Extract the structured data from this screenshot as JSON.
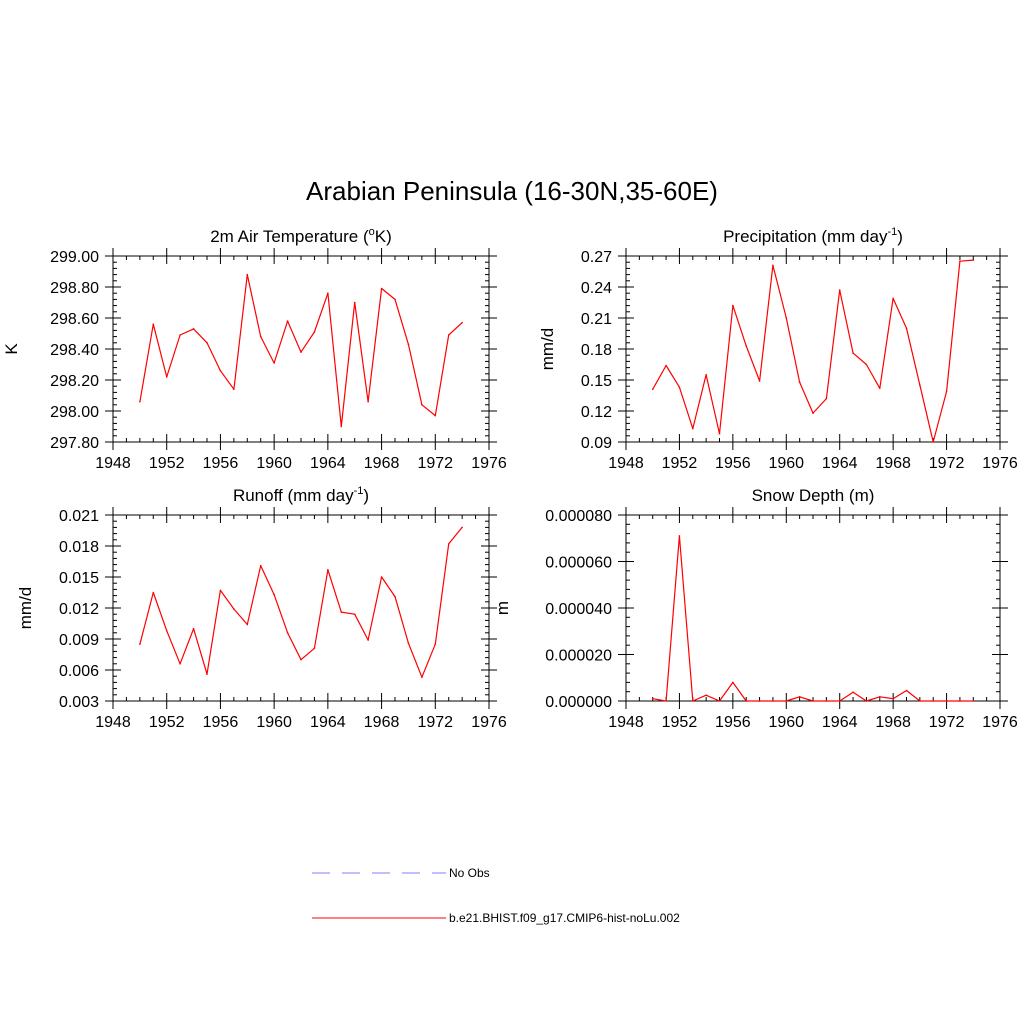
{
  "title": "Arabian Peninsula (16-30N,35-60E)",
  "legend": [
    {
      "label": "No Obs",
      "color": "#9999ff",
      "dash": true
    },
    {
      "label": "b.e21.BHIST.f09_g17.CMIP6-hist-noLu.002",
      "color": "#ff0000",
      "dash": false
    }
  ],
  "chart_data": [
    {
      "type": "line",
      "title": "2m Air Temperature (°K)",
      "title_main": "2m Air Temperature (",
      "title_sup": "o",
      "title_tail": "K)",
      "xlabel": "",
      "ylabel": "K",
      "xlim": [
        1948,
        1976
      ],
      "ylim": [
        297.8,
        299.0
      ],
      "xticks": [
        "1948",
        "1952",
        "1956",
        "1960",
        "1964",
        "1968",
        "1972",
        "1976"
      ],
      "yticks": [
        "297.80",
        "298.00",
        "298.20",
        "298.40",
        "298.60",
        "298.80",
        "299.00"
      ],
      "series": [
        {
          "name": "b.e21.BHIST.f09_g17.CMIP6-hist-noLu.002",
          "color": "#ff0000",
          "x": [
            1950,
            1951,
            1952,
            1953,
            1954,
            1955,
            1956,
            1957,
            1958,
            1959,
            1960,
            1961,
            1962,
            1963,
            1964,
            1965,
            1966,
            1967,
            1968,
            1969,
            1970,
            1971,
            1972,
            1973,
            1974
          ],
          "y": [
            298.06,
            298.56,
            298.22,
            298.49,
            298.53,
            298.44,
            298.26,
            298.14,
            298.88,
            298.48,
            298.31,
            298.58,
            298.38,
            298.51,
            298.76,
            297.9,
            298.7,
            298.06,
            298.79,
            298.72,
            298.43,
            298.04,
            297.97,
            298.49,
            298.57
          ]
        }
      ]
    },
    {
      "type": "line",
      "title": "Precipitation (mm day-1)",
      "title_main": "Precipitation (mm day",
      "title_sup": "-1",
      "title_tail": ")",
      "xlabel": "",
      "ylabel": "mm/d",
      "xlim": [
        1948,
        1976
      ],
      "ylim": [
        0.09,
        0.27
      ],
      "xticks": [
        "1948",
        "1952",
        "1956",
        "1960",
        "1964",
        "1968",
        "1972",
        "1976"
      ],
      "yticks": [
        "0.09",
        "0.12",
        "0.15",
        "0.18",
        "0.21",
        "0.24",
        "0.27"
      ],
      "series": [
        {
          "name": "b.e21.BHIST.f09_g17.CMIP6-hist-noLu.002",
          "color": "#ff0000",
          "x": [
            1950,
            1951,
            1952,
            1953,
            1954,
            1955,
            1956,
            1957,
            1958,
            1959,
            1960,
            1961,
            1962,
            1963,
            1964,
            1965,
            1966,
            1967,
            1968,
            1969,
            1970,
            1971,
            1972,
            1973,
            1974
          ],
          "y": [
            0.141,
            0.164,
            0.143,
            0.103,
            0.155,
            0.098,
            0.222,
            0.183,
            0.149,
            0.261,
            0.21,
            0.148,
            0.118,
            0.132,
            0.237,
            0.176,
            0.165,
            0.142,
            0.229,
            0.2,
            0.145,
            0.09,
            0.139,
            0.265,
            0.266
          ]
        }
      ]
    },
    {
      "type": "line",
      "title": "Runoff (mm day-1)",
      "title_main": "Runoff (mm day",
      "title_sup": "-1",
      "title_tail": ")",
      "xlabel": "",
      "ylabel": "mm/d",
      "xlim": [
        1948,
        1976
      ],
      "ylim": [
        0.003,
        0.021
      ],
      "xticks": [
        "1948",
        "1952",
        "1956",
        "1960",
        "1964",
        "1968",
        "1972",
        "1976"
      ],
      "yticks": [
        "0.003",
        "0.006",
        "0.009",
        "0.012",
        "0.015",
        "0.018",
        "0.021"
      ],
      "series": [
        {
          "name": "b.e21.BHIST.f09_g17.CMIP6-hist-noLu.002",
          "color": "#ff0000",
          "x": [
            1950,
            1951,
            1952,
            1953,
            1954,
            1955,
            1956,
            1957,
            1958,
            1959,
            1960,
            1961,
            1962,
            1963,
            1964,
            1965,
            1966,
            1967,
            1968,
            1969,
            1970,
            1971,
            1972,
            1973,
            1974
          ],
          "y": [
            0.0085,
            0.0135,
            0.0098,
            0.0066,
            0.01,
            0.0056,
            0.0137,
            0.0119,
            0.0104,
            0.0161,
            0.0133,
            0.0096,
            0.007,
            0.0081,
            0.0157,
            0.0116,
            0.0114,
            0.0089,
            0.015,
            0.0131,
            0.0086,
            0.0053,
            0.0085,
            0.0182,
            0.0198
          ]
        }
      ]
    },
    {
      "type": "line",
      "title": "Snow Depth (m)",
      "title_main": "Snow Depth (m)",
      "title_sup": "",
      "title_tail": "",
      "xlabel": "",
      "ylabel": "m",
      "xlim": [
        1948,
        1976
      ],
      "ylim": [
        0,
        8e-05
      ],
      "xticks": [
        "1948",
        "1952",
        "1956",
        "1960",
        "1964",
        "1968",
        "1972",
        "1976"
      ],
      "yticks": [
        "0.000000",
        "0.000020",
        "0.000040",
        "0.000060",
        "0.000080"
      ],
      "series": [
        {
          "name": "b.e21.BHIST.f09_g17.CMIP6-hist-noLu.002",
          "color": "#ff0000",
          "x": [
            1950,
            1951,
            1952,
            1953,
            1954,
            1955,
            1956,
            1957,
            1958,
            1959,
            1960,
            1961,
            1962,
            1963,
            1964,
            1965,
            1966,
            1967,
            1968,
            1969,
            1970,
            1971,
            1972,
            1973,
            1974
          ],
          "y": [
            1e-06,
            0.0,
            7.1e-05,
            0.0,
            2.5e-06,
            0.0,
            8e-06,
            0.0,
            0.0,
            0.0,
            0.0,
            1.8e-06,
            0.0,
            0.0,
            0.0,
            3.8e-06,
            0.0,
            1.8e-06,
            1e-06,
            4.5e-06,
            0.0,
            0.0,
            0.0,
            0.0,
            0.0
          ]
        }
      ]
    }
  ]
}
